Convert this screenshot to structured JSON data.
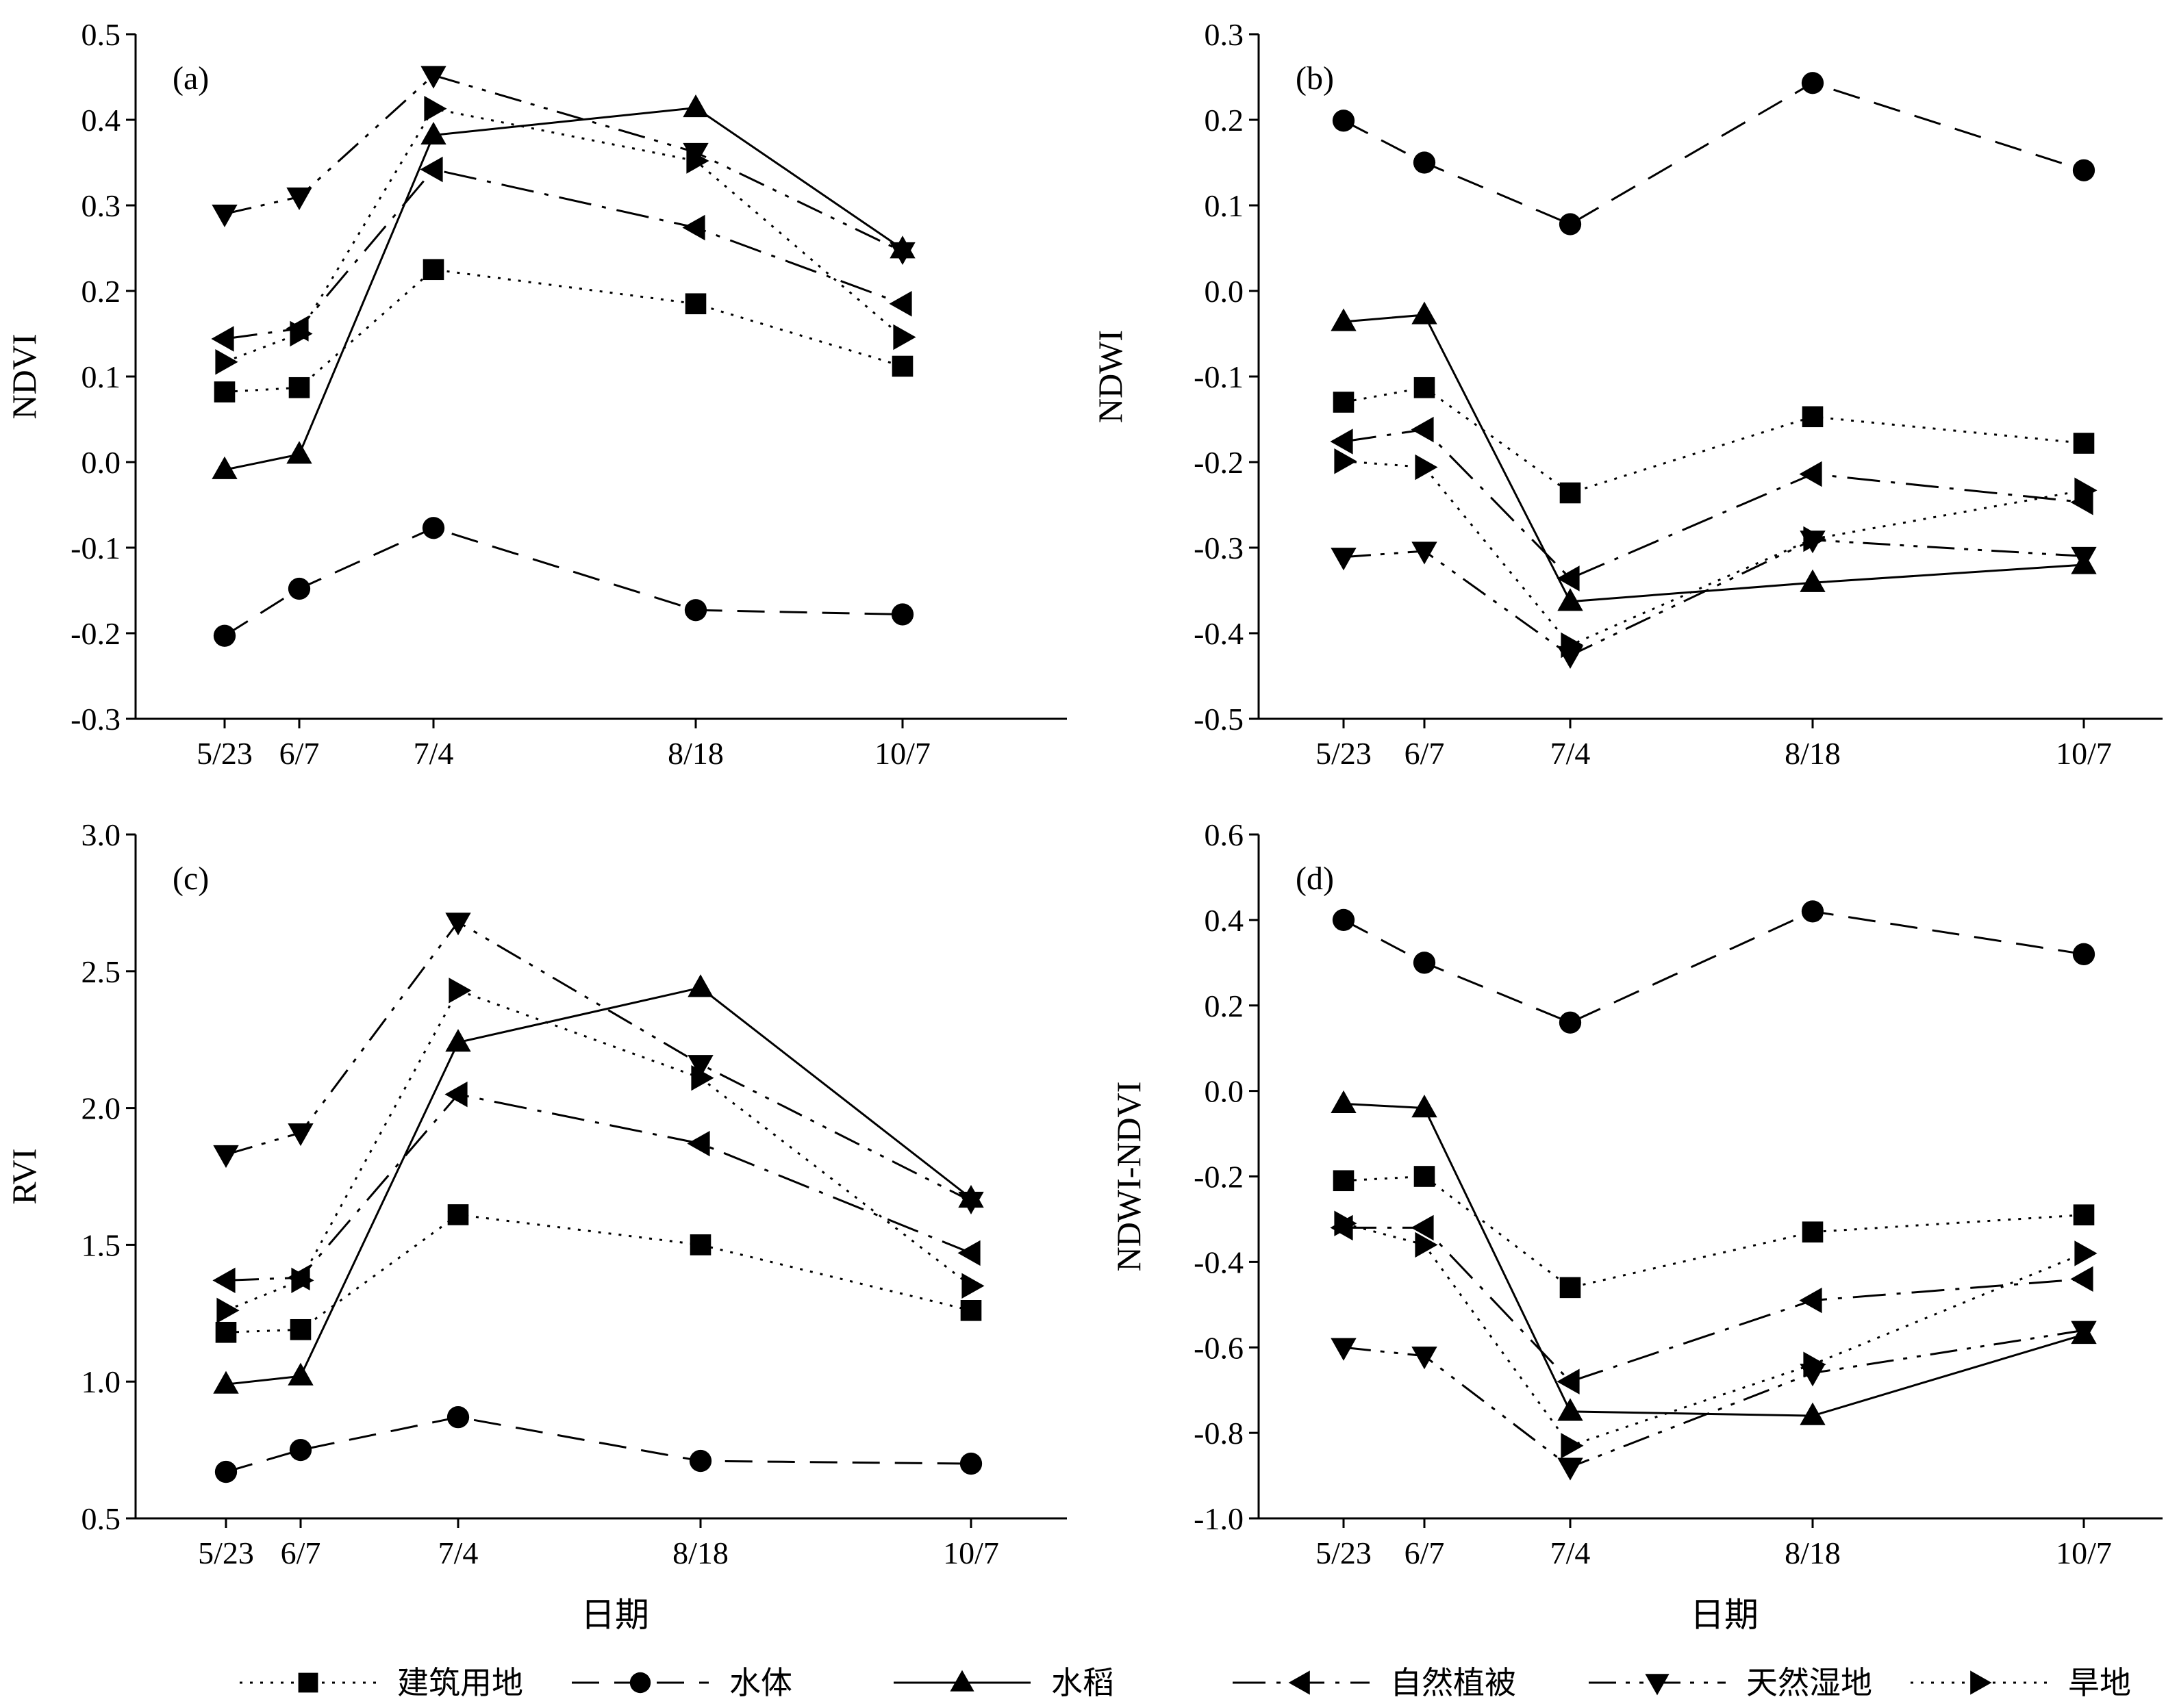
{
  "chart_data": [
    {
      "panel": "(a)",
      "type": "line",
      "ylabel": "NDVI",
      "xlabel": "",
      "ylim": [
        -0.3,
        0.5
      ],
      "yticks": [
        "-0.3",
        "-0.2",
        "-0.1",
        "0.0",
        "0.1",
        "0.2",
        "0.3",
        "0.4",
        "0.5"
      ],
      "x": [
        "5/23",
        "6/7",
        "7/4",
        "8/18",
        "10/7"
      ],
      "series": [
        {
          "name": "建筑用地",
          "values": [
            0.082,
            0.087,
            0.225,
            0.185,
            0.112
          ]
        },
        {
          "name": "水体",
          "values": [
            -0.203,
            -0.148,
            -0.077,
            -0.173,
            -0.178
          ]
        },
        {
          "name": "水稻",
          "values": [
            -0.009,
            0.009,
            0.382,
            0.414,
            0.249
          ]
        },
        {
          "name": "自然植被",
          "values": [
            0.144,
            0.156,
            0.342,
            0.274,
            0.185
          ]
        },
        {
          "name": "天然湿地",
          "values": [
            0.29,
            0.31,
            0.452,
            0.362,
            0.246
          ]
        },
        {
          "name": "旱地",
          "values": [
            0.117,
            0.15,
            0.413,
            0.352,
            0.146
          ]
        }
      ]
    },
    {
      "panel": "(b)",
      "type": "line",
      "ylabel": "NDWI",
      "xlabel": "",
      "ylim": [
        -0.5,
        0.3
      ],
      "yticks": [
        "-0.5",
        "-0.4",
        "-0.3",
        "-0.2",
        "-0.1",
        "0.0",
        "0.1",
        "0.2",
        "0.3"
      ],
      "x": [
        "5/23",
        "6/7",
        "7/4",
        "8/18",
        "10/7"
      ],
      "series": [
        {
          "name": "建筑用地",
          "values": [
            -0.13,
            -0.113,
            -0.236,
            -0.147,
            -0.178
          ]
        },
        {
          "name": "水体",
          "values": [
            0.199,
            0.15,
            0.078,
            0.243,
            0.141
          ]
        },
        {
          "name": "水稻",
          "values": [
            -0.036,
            -0.028,
            -0.363,
            -0.341,
            -0.32
          ]
        },
        {
          "name": "自然植被",
          "values": [
            -0.176,
            -0.162,
            -0.336,
            -0.214,
            -0.247
          ]
        },
        {
          "name": "天然湿地",
          "values": [
            -0.311,
            -0.304,
            -0.426,
            -0.291,
            -0.31
          ]
        },
        {
          "name": "旱地",
          "values": [
            -0.199,
            -0.206,
            -0.414,
            -0.29,
            -0.233
          ]
        }
      ]
    },
    {
      "panel": "(c)",
      "type": "line",
      "ylabel": "RVI",
      "xlabel": "日期",
      "ylim": [
        0.5,
        3.0
      ],
      "yticks": [
        "0.5",
        "1.0",
        "1.5",
        "2.0",
        "2.5",
        "3.0"
      ],
      "x": [
        "5/23",
        "6/7",
        "7/4",
        "8/18",
        "10/7"
      ],
      "series": [
        {
          "name": "建筑用地",
          "values": [
            1.18,
            1.19,
            1.61,
            1.5,
            1.26
          ]
        },
        {
          "name": "水体",
          "values": [
            0.67,
            0.75,
            0.87,
            0.71,
            0.7
          ]
        },
        {
          "name": "水稻",
          "values": [
            0.99,
            1.02,
            2.24,
            2.44,
            1.67
          ]
        },
        {
          "name": "自然植被",
          "values": [
            1.37,
            1.38,
            2.05,
            1.87,
            1.47
          ]
        },
        {
          "name": "天然湿地",
          "values": [
            1.83,
            1.91,
            2.68,
            2.16,
            1.66
          ]
        },
        {
          "name": "旱地",
          "values": [
            1.26,
            1.37,
            2.43,
            2.11,
            1.35
          ]
        }
      ]
    },
    {
      "panel": "(d)",
      "type": "line",
      "ylabel": "NDWI-NDVI",
      "xlabel": "日期",
      "ylim": [
        -1.0,
        0.6
      ],
      "yticks": [
        "-1.0",
        "-0.8",
        "-0.6",
        "-0.4",
        "-0.2",
        "0.0",
        "0.2",
        "0.4",
        "0.6"
      ],
      "x": [
        "5/23",
        "6/7",
        "7/4",
        "8/18",
        "10/7"
      ],
      "series": [
        {
          "name": "建筑用地",
          "values": [
            -0.21,
            -0.2,
            -0.46,
            -0.33,
            -0.29
          ]
        },
        {
          "name": "水体",
          "values": [
            0.4,
            0.3,
            0.16,
            0.42,
            0.32
          ]
        },
        {
          "name": "水稻",
          "values": [
            -0.03,
            -0.04,
            -0.75,
            -0.76,
            -0.57
          ]
        },
        {
          "name": "自然植被",
          "values": [
            -0.32,
            -0.32,
            -0.68,
            -0.49,
            -0.44
          ]
        },
        {
          "name": "天然湿地",
          "values": [
            -0.6,
            -0.62,
            -0.88,
            -0.66,
            -0.56
          ]
        },
        {
          "name": "旱地",
          "values": [
            -0.31,
            -0.36,
            -0.83,
            -0.64,
            -0.38
          ]
        }
      ]
    }
  ],
  "legend": {
    "placement": "bottom",
    "items": [
      {
        "label": "建筑用地",
        "line_style": "dotted",
        "marker": "square"
      },
      {
        "label": "水体",
        "line_style": "dashed",
        "marker": "circle"
      },
      {
        "label": "水稻",
        "line_style": "solid",
        "marker": "triangle-up"
      },
      {
        "label": "自然植被",
        "line_style": "dash-dot",
        "marker": "triangle-left"
      },
      {
        "label": "天然湿地",
        "line_style": "dash-dot-dot",
        "marker": "triangle-down"
      },
      {
        "label": "旱地",
        "line_style": "dotted",
        "marker": "triangle-right"
      }
    ]
  },
  "colors": {
    "ink": "#000000",
    "background": "#ffffff"
  }
}
